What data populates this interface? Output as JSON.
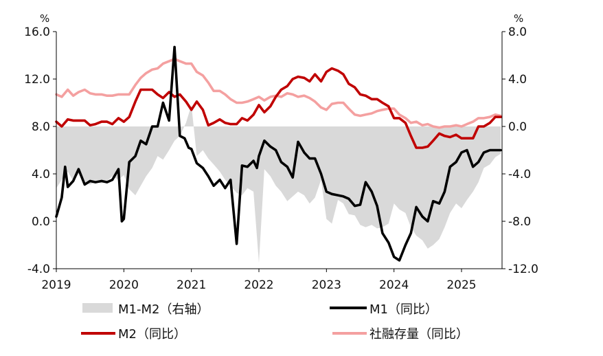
{
  "chart_data": {
    "type": "line",
    "x_range": [
      2019.0,
      2025.6
    ],
    "left_axis": {
      "unit": "%",
      "ylim": [
        -4.0,
        16.0
      ],
      "ticks": [
        "16.0",
        "12.0",
        "8.0",
        "4.0",
        "0.0",
        "-4.0"
      ]
    },
    "right_axis": {
      "unit": "%",
      "ylim": [
        -12.0,
        8.0
      ],
      "ticks": [
        "8.0",
        "4.0",
        "0.0",
        "-4.0",
        "-8.0",
        "-12.0"
      ]
    },
    "x_ticks": [
      "2019",
      "2020",
      "2021",
      "2022",
      "2023",
      "2024",
      "2025"
    ],
    "grid": false,
    "legend": [
      {
        "key": "gap",
        "label": "M1-M2（右轴）"
      },
      {
        "key": "m1",
        "label": "M1（同比）"
      },
      {
        "key": "m2",
        "label": "M2（同比）"
      },
      {
        "key": "tsf",
        "label": "社融存量（同比）"
      }
    ],
    "series": [
      {
        "key": "gap",
        "name": "M1-M2（右轴）",
        "axis": "right",
        "style": "area",
        "color": "#d9d9d9",
        "x": [
          2019.0,
          2019.08,
          2019.17,
          2019.25,
          2019.33,
          2019.42,
          2019.5,
          2019.58,
          2019.67,
          2019.75,
          2019.83,
          2019.92,
          2020.0,
          2020.08,
          2020.17,
          2020.25,
          2020.33,
          2020.42,
          2020.5,
          2020.58,
          2020.67,
          2020.75,
          2020.83,
          2020.92,
          2021.0,
          2021.08,
          2021.17,
          2021.25,
          2021.33,
          2021.42,
          2021.5,
          2021.58,
          2021.67,
          2021.75,
          2021.83,
          2021.92,
          2022.0,
          2022.08,
          2022.17,
          2022.25,
          2022.33,
          2022.42,
          2022.5,
          2022.58,
          2022.67,
          2022.75,
          2022.83,
          2022.92,
          2023.0,
          2023.08,
          2023.17,
          2023.25,
          2023.33,
          2023.42,
          2023.5,
          2023.58,
          2023.67,
          2023.75,
          2023.83,
          2023.92,
          2024.0,
          2024.08,
          2024.17,
          2024.25,
          2024.33,
          2024.42,
          2024.5,
          2024.58,
          2024.67,
          2024.75,
          2024.83,
          2024.92,
          2025.0,
          2025.08,
          2025.17,
          2025.25,
          2025.33,
          2025.42,
          2025.5,
          2025.58
        ],
        "values": [
          -5.2,
          -4.5,
          -3.8,
          -4.6,
          -4.0,
          -4.8,
          -4.9,
          -4.7,
          -4.8,
          -4.6,
          -4.2,
          -4.5,
          -4.1,
          -5.3,
          -5.8,
          -5.0,
          -4.2,
          -3.5,
          -2.5,
          -2.8,
          -2.0,
          -1.2,
          -0.8,
          0.3,
          1.8,
          -2.5,
          -2.0,
          -2.7,
          -3.2,
          -3.8,
          -4.5,
          -5.0,
          -5.6,
          -5.8,
          -5.2,
          -5.5,
          -11.5,
          -3.6,
          -4.2,
          -5.0,
          -5.5,
          -6.3,
          -5.9,
          -5.5,
          -5.8,
          -6.5,
          -6.0,
          -4.5,
          -7.8,
          -8.2,
          -6.2,
          -6.5,
          -7.4,
          -7.5,
          -8.3,
          -8.5,
          -8.3,
          -8.6,
          -8.5,
          -8.2,
          -6.5,
          -7.0,
          -7.3,
          -8.5,
          -9.2,
          -9.6,
          -10.3,
          -10.0,
          -9.5,
          -8.5,
          -7.3,
          -6.5,
          -6.9,
          -6.2,
          -5.5,
          -4.7,
          -3.5,
          -3.2,
          -2.6,
          -2.3
        ]
      },
      {
        "key": "m1",
        "name": "M1（同比）",
        "axis": "left",
        "style": "line",
        "color": "#000000",
        "x": [
          2019.0,
          2019.08,
          2019.13,
          2019.17,
          2019.25,
          2019.33,
          2019.42,
          2019.5,
          2019.58,
          2019.67,
          2019.75,
          2019.83,
          2019.92,
          2019.97,
          2020.0,
          2020.08,
          2020.17,
          2020.25,
          2020.33,
          2020.42,
          2020.5,
          2020.58,
          2020.67,
          2020.75,
          2020.83,
          2020.9,
          2020.96,
          2021.0,
          2021.04,
          2021.08,
          2021.17,
          2021.25,
          2021.33,
          2021.42,
          2021.5,
          2021.58,
          2021.67,
          2021.75,
          2021.83,
          2021.92,
          2021.97,
          2022.0,
          2022.08,
          2022.17,
          2022.25,
          2022.33,
          2022.42,
          2022.5,
          2022.58,
          2022.67,
          2022.75,
          2022.83,
          2022.92,
          2023.0,
          2023.08,
          2023.17,
          2023.25,
          2023.33,
          2023.42,
          2023.5,
          2023.58,
          2023.67,
          2023.75,
          2023.83,
          2023.92,
          2024.0,
          2024.08,
          2024.17,
          2024.25,
          2024.33,
          2024.42,
          2024.5,
          2024.58,
          2024.67,
          2024.75,
          2024.83,
          2024.92,
          2025.0,
          2025.08,
          2025.17,
          2025.25,
          2025.33,
          2025.42,
          2025.5,
          2025.58
        ],
        "values": [
          0.4,
          2.0,
          4.6,
          2.9,
          3.4,
          4.4,
          3.1,
          3.4,
          3.3,
          3.4,
          3.3,
          3.5,
          4.4,
          0.0,
          0.2,
          5.0,
          5.5,
          6.8,
          6.5,
          8.0,
          8.0,
          10.0,
          8.5,
          14.7,
          7.2,
          7.0,
          6.2,
          6.1,
          5.5,
          4.9,
          4.5,
          3.8,
          3.0,
          3.5,
          2.8,
          3.5,
          -1.9,
          4.7,
          4.6,
          5.1,
          4.5,
          5.5,
          6.8,
          6.3,
          6.0,
          5.0,
          4.6,
          3.7,
          6.7,
          5.8,
          5.3,
          5.3,
          4.0,
          2.5,
          2.3,
          2.2,
          2.1,
          1.9,
          1.3,
          1.4,
          3.3,
          2.5,
          1.3,
          -1.0,
          -1.8,
          -3.0,
          -3.3,
          -2.0,
          -1.0,
          1.2,
          0.4,
          0.0,
          1.7,
          1.5,
          2.5,
          4.6,
          5.0,
          5.8,
          6.0,
          4.6,
          5.0,
          5.8,
          6.0,
          6.0,
          6.0
        ]
      },
      {
        "key": "m2",
        "name": "M2（同比）",
        "axis": "left",
        "style": "line",
        "color": "#c00000",
        "x": [
          2019.0,
          2019.08,
          2019.17,
          2019.25,
          2019.33,
          2019.42,
          2019.5,
          2019.58,
          2019.67,
          2019.75,
          2019.83,
          2019.92,
          2020.0,
          2020.08,
          2020.17,
          2020.25,
          2020.33,
          2020.42,
          2020.5,
          2020.58,
          2020.67,
          2020.75,
          2020.83,
          2020.92,
          2021.0,
          2021.08,
          2021.17,
          2021.25,
          2021.33,
          2021.42,
          2021.5,
          2021.58,
          2021.67,
          2021.75,
          2021.83,
          2021.92,
          2022.0,
          2022.08,
          2022.17,
          2022.25,
          2022.33,
          2022.42,
          2022.5,
          2022.58,
          2022.67,
          2022.75,
          2022.83,
          2022.92,
          2023.0,
          2023.08,
          2023.17,
          2023.25,
          2023.33,
          2023.42,
          2023.5,
          2023.58,
          2023.67,
          2023.75,
          2023.83,
          2023.92,
          2024.0,
          2024.08,
          2024.17,
          2024.25,
          2024.33,
          2024.42,
          2024.5,
          2024.58,
          2024.67,
          2024.75,
          2024.83,
          2024.92,
          2025.0,
          2025.08,
          2025.17,
          2025.25,
          2025.33,
          2025.42,
          2025.5,
          2025.58
        ],
        "values": [
          8.4,
          8.0,
          8.6,
          8.5,
          8.5,
          8.5,
          8.1,
          8.2,
          8.4,
          8.4,
          8.2,
          8.7,
          8.4,
          8.8,
          10.1,
          11.1,
          11.1,
          11.1,
          10.7,
          10.4,
          10.9,
          10.5,
          10.7,
          10.1,
          9.4,
          10.1,
          9.4,
          8.1,
          8.3,
          8.6,
          8.3,
          8.2,
          8.2,
          8.7,
          8.5,
          9.0,
          9.8,
          9.2,
          9.7,
          10.5,
          11.1,
          11.4,
          12.0,
          12.2,
          12.1,
          11.8,
          12.4,
          11.8,
          12.6,
          12.9,
          12.7,
          12.4,
          11.6,
          11.3,
          10.7,
          10.6,
          10.3,
          10.3,
          10.0,
          9.7,
          8.7,
          8.7,
          8.3,
          7.2,
          6.2,
          6.2,
          6.3,
          6.8,
          7.4,
          7.2,
          7.1,
          7.3,
          7.0,
          7.0,
          7.0,
          8.0,
          8.0,
          8.3,
          8.8,
          8.8
        ]
      },
      {
        "key": "tsf",
        "name": "社融存量（同比）",
        "axis": "left",
        "style": "line",
        "color": "#f4a0a0",
        "x": [
          2019.0,
          2019.08,
          2019.17,
          2019.25,
          2019.33,
          2019.42,
          2019.5,
          2019.58,
          2019.67,
          2019.75,
          2019.83,
          2019.92,
          2020.0,
          2020.08,
          2020.17,
          2020.25,
          2020.33,
          2020.42,
          2020.5,
          2020.58,
          2020.67,
          2020.75,
          2020.83,
          2020.92,
          2021.0,
          2021.08,
          2021.17,
          2021.25,
          2021.33,
          2021.42,
          2021.5,
          2021.58,
          2021.67,
          2021.75,
          2021.83,
          2021.92,
          2022.0,
          2022.08,
          2022.17,
          2022.25,
          2022.33,
          2022.42,
          2022.5,
          2022.58,
          2022.67,
          2022.75,
          2022.83,
          2022.92,
          2023.0,
          2023.08,
          2023.17,
          2023.25,
          2023.33,
          2023.42,
          2023.5,
          2023.58,
          2023.67,
          2023.75,
          2023.83,
          2023.92,
          2024.0,
          2024.08,
          2024.17,
          2024.25,
          2024.33,
          2024.42,
          2024.5,
          2024.58,
          2024.67,
          2024.75,
          2024.83,
          2024.92,
          2025.0,
          2025.08,
          2025.17,
          2025.25,
          2025.33,
          2025.42,
          2025.5,
          2025.58
        ],
        "values": [
          10.7,
          10.5,
          11.1,
          10.6,
          10.9,
          11.1,
          10.8,
          10.7,
          10.7,
          10.6,
          10.6,
          10.7,
          10.7,
          10.7,
          11.5,
          12.1,
          12.5,
          12.8,
          12.9,
          13.3,
          13.5,
          13.7,
          13.5,
          13.3,
          13.3,
          12.6,
          12.3,
          11.7,
          11.0,
          11.0,
          10.7,
          10.3,
          10.0,
          10.0,
          10.1,
          10.3,
          10.5,
          10.2,
          10.5,
          10.6,
          10.5,
          10.8,
          10.7,
          10.5,
          10.6,
          10.4,
          10.1,
          9.6,
          9.4,
          9.9,
          10.0,
          10.0,
          9.5,
          9.0,
          8.9,
          9.0,
          9.1,
          9.3,
          9.4,
          9.5,
          9.5,
          9.0,
          8.7,
          8.3,
          8.4,
          8.1,
          8.2,
          8.0,
          7.9,
          8.0,
          8.0,
          8.1,
          8.0,
          8.2,
          8.4,
          8.7,
          8.7,
          8.8,
          9.0,
          8.9
        ]
      }
    ]
  }
}
